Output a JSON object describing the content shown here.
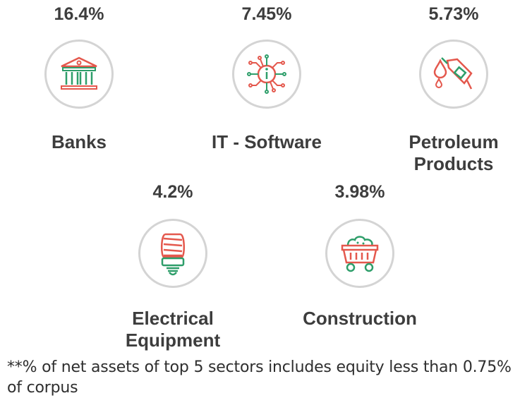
{
  "sectors": [
    {
      "name": "Banks",
      "value": "16.4%",
      "icon": "bank-icon"
    },
    {
      "name": "IT - Software",
      "value": "7.45%",
      "icon": "chip-icon"
    },
    {
      "name_line1": "Petroleum",
      "name_line2": "Products",
      "value": "5.73%",
      "icon": "fuel-nozzle-icon"
    },
    {
      "name_line1": "Electrical",
      "name_line2": "Equipment",
      "value": "4.2%",
      "icon": "light-bulb-icon"
    },
    {
      "name": "Construction",
      "value": "3.98%",
      "icon": "mining-cart-icon"
    }
  ],
  "footnote": "**% of net assets of top 5 sectors includes equity less than 0.75% of corpus",
  "colors": {
    "green": "#2e9e6a",
    "red": "#e4584d",
    "ring": "#d4d4d4"
  }
}
